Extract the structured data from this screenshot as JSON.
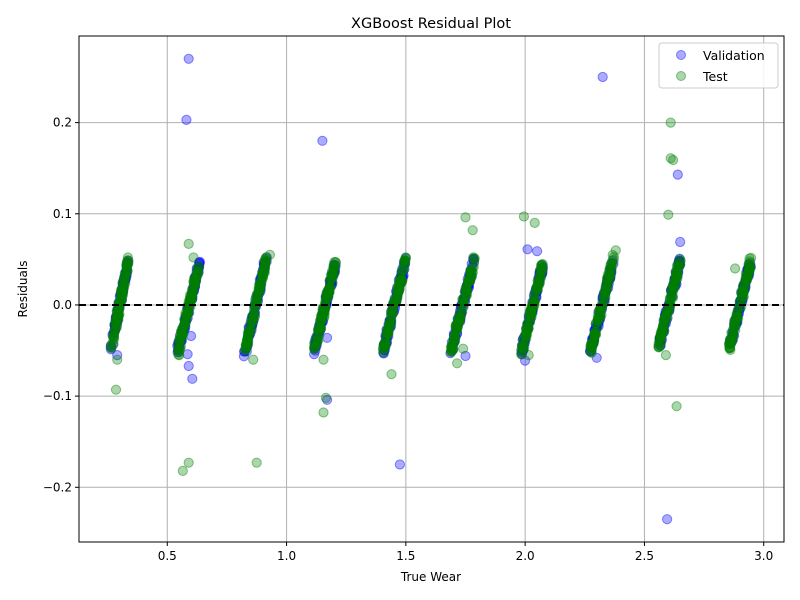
{
  "chart_data": {
    "type": "scatter",
    "title": "XGBoost Residual Plot",
    "xlabel": "True Wear",
    "ylabel": "Residuals",
    "xlim": [
      0.13,
      3.085
    ],
    "ylim": [
      -0.26,
      0.295
    ],
    "xticks": [
      0.5,
      1.0,
      1.5,
      2.0,
      2.5,
      3.0
    ],
    "xtick_labels": [
      "0.5",
      "1.0",
      "1.5",
      "2.0",
      "2.5",
      "3.0"
    ],
    "yticks": [
      -0.2,
      -0.1,
      0.0,
      0.1,
      0.2
    ],
    "ytick_labels": [
      "−0.2",
      "−0.1",
      "0.0",
      "0.1",
      "0.2"
    ],
    "grid": true,
    "reference_line": {
      "y": 0,
      "style": "dashed",
      "color": "#000000"
    },
    "legend_position": "top-right",
    "clusters": [
      {
        "x_start": 0.265,
        "x_end": 0.335,
        "y_start": -0.047,
        "y_end": 0.047
      },
      {
        "x_start": 0.545,
        "x_end": 0.635,
        "y_start": -0.05,
        "y_end": 0.045
      },
      {
        "x_start": 0.825,
        "x_end": 0.915,
        "y_start": -0.052,
        "y_end": 0.05
      },
      {
        "x_start": 1.115,
        "x_end": 1.205,
        "y_start": -0.05,
        "y_end": 0.045
      },
      {
        "x_start": 1.405,
        "x_end": 1.5,
        "y_start": -0.05,
        "y_end": 0.05
      },
      {
        "x_start": 1.69,
        "x_end": 1.785,
        "y_start": -0.05,
        "y_end": 0.048
      },
      {
        "x_start": 1.985,
        "x_end": 2.075,
        "y_start": -0.052,
        "y_end": 0.045
      },
      {
        "x_start": 2.275,
        "x_end": 2.37,
        "y_start": -0.05,
        "y_end": 0.05
      },
      {
        "x_start": 2.56,
        "x_end": 2.65,
        "y_start": -0.045,
        "y_end": 0.048
      },
      {
        "x_start": 2.855,
        "x_end": 2.945,
        "y_start": -0.048,
        "y_end": 0.048
      }
    ],
    "series": [
      {
        "name": "Validation",
        "color": "#0000ff",
        "outliers": [
          {
            "x": 0.59,
            "y": 0.27
          },
          {
            "x": 0.58,
            "y": 0.203
          },
          {
            "x": 1.15,
            "y": 0.18
          },
          {
            "x": 2.325,
            "y": 0.25
          },
          {
            "x": 2.64,
            "y": 0.143
          },
          {
            "x": 2.65,
            "y": 0.069
          },
          {
            "x": 2.01,
            "y": 0.061
          },
          {
            "x": 2.05,
            "y": 0.059
          },
          {
            "x": 0.585,
            "y": -0.054
          },
          {
            "x": 0.59,
            "y": -0.067
          },
          {
            "x": 0.605,
            "y": -0.081
          },
          {
            "x": 1.17,
            "y": -0.104
          },
          {
            "x": 1.475,
            "y": -0.175
          },
          {
            "x": 2.595,
            "y": -0.235
          },
          {
            "x": 2.3,
            "y": -0.058
          },
          {
            "x": 2.0,
            "y": -0.061
          },
          {
            "x": 0.29,
            "y": -0.055
          },
          {
            "x": 1.75,
            "y": -0.056
          },
          {
            "x": 1.17,
            "y": -0.036
          },
          {
            "x": 0.6,
            "y": -0.034
          }
        ]
      },
      {
        "name": "Test",
        "color": "#008000",
        "outliers": [
          {
            "x": 0.285,
            "y": -0.093
          },
          {
            "x": 0.29,
            "y": -0.06
          },
          {
            "x": 0.565,
            "y": -0.182
          },
          {
            "x": 0.59,
            "y": -0.173
          },
          {
            "x": 0.875,
            "y": -0.173
          },
          {
            "x": 0.59,
            "y": 0.067
          },
          {
            "x": 0.61,
            "y": 0.052
          },
          {
            "x": 0.93,
            "y": 0.055
          },
          {
            "x": 1.155,
            "y": -0.118
          },
          {
            "x": 1.165,
            "y": -0.102
          },
          {
            "x": 1.155,
            "y": -0.06
          },
          {
            "x": 1.44,
            "y": -0.076
          },
          {
            "x": 1.75,
            "y": 0.096
          },
          {
            "x": 1.78,
            "y": 0.082
          },
          {
            "x": 1.715,
            "y": -0.064
          },
          {
            "x": 1.74,
            "y": -0.048
          },
          {
            "x": 1.995,
            "y": 0.097
          },
          {
            "x": 2.04,
            "y": 0.09
          },
          {
            "x": 2.015,
            "y": -0.055
          },
          {
            "x": 2.38,
            "y": 0.06
          },
          {
            "x": 2.61,
            "y": 0.2
          },
          {
            "x": 2.61,
            "y": 0.161
          },
          {
            "x": 2.62,
            "y": 0.159
          },
          {
            "x": 2.6,
            "y": 0.099
          },
          {
            "x": 2.635,
            "y": -0.111
          },
          {
            "x": 2.59,
            "y": -0.055
          },
          {
            "x": 2.88,
            "y": 0.04
          },
          {
            "x": 0.335,
            "y": 0.052
          },
          {
            "x": 1.5,
            "y": 0.052
          },
          {
            "x": 1.2,
            "y": 0.047
          },
          {
            "x": 0.55,
            "y": -0.055
          },
          {
            "x": 0.86,
            "y": -0.06
          }
        ]
      }
    ]
  }
}
